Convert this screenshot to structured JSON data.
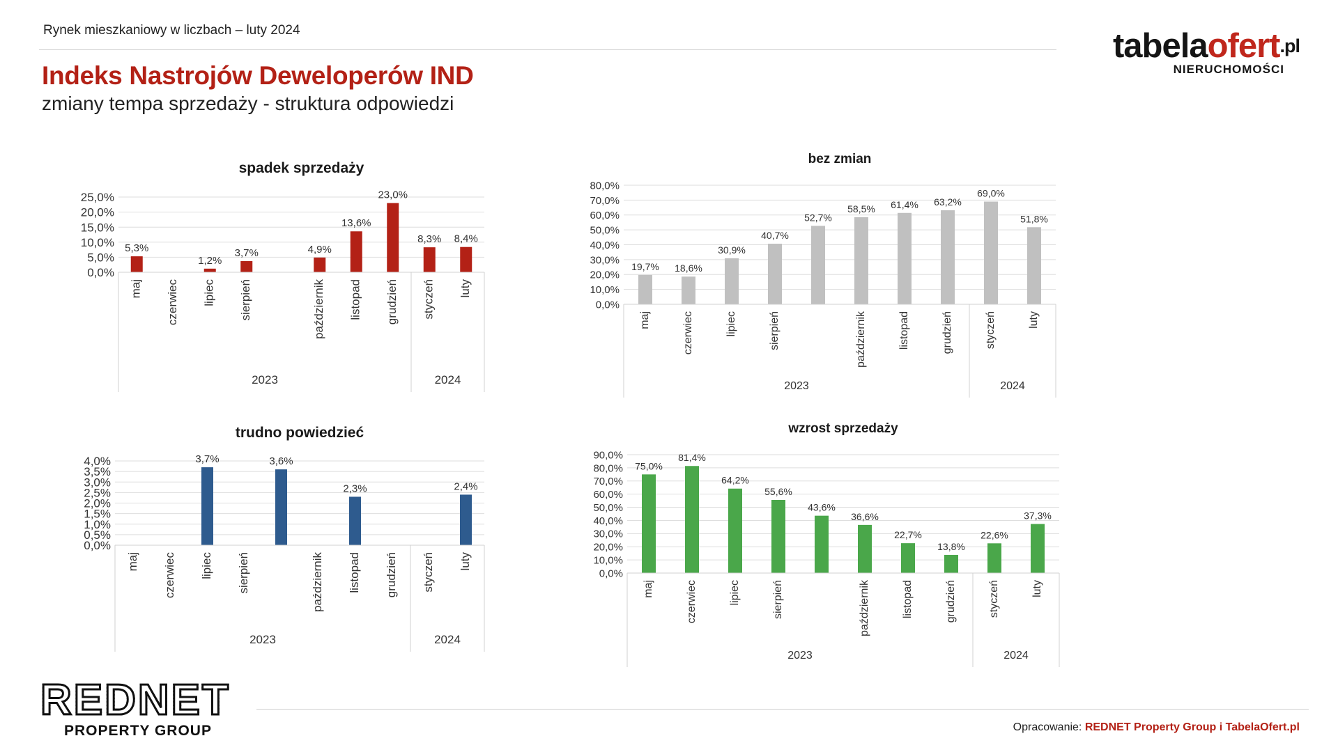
{
  "header": {
    "subheading": "Rynek mieszkaniowy w liczbach – luty 2024",
    "title": "Indeks Nastrojów Deweloperów IND",
    "subtitle": "zmiany tempa sprzedaży - struktura odpowiedzi"
  },
  "logo": {
    "main": "tabela",
    "accent": "ofert",
    "tld": ".pl",
    "sub": "NIERUCHOMOŚCI"
  },
  "footer": {
    "brand": "REDNET",
    "brand_sub": "PROPERTY GROUP",
    "credit_prefix": "Opracowanie: ",
    "credit_strong": "REDNET Property Group i TabelaOfert.pl"
  },
  "colors": {
    "accent": "#b32116",
    "red_bar": "#b32116",
    "gray_bar": "#c0c0c0",
    "blue_bar": "#2e5b8e",
    "green_bar": "#4aa74a"
  },
  "chart_data": [
    {
      "type": "bar",
      "title": "spadek sprzedaży",
      "categories": [
        "maj",
        "czerwiec",
        "lipiec",
        "sierpień",
        "",
        "październik",
        "listopad",
        "grudzień",
        "styczeń",
        "luty"
      ],
      "year_groups": [
        {
          "label": "2023",
          "count": 8
        },
        {
          "label": "2024",
          "count": 2
        }
      ],
      "values": [
        5.3,
        null,
        1.2,
        3.7,
        null,
        4.9,
        13.6,
        23.0,
        8.3,
        8.4
      ],
      "value_labels": [
        "5,3%",
        "",
        "1,2%",
        "3,7%",
        "",
        "4,9%",
        "13,6%",
        "23,0%",
        "8,3%",
        "8,4%"
      ],
      "ylim": [
        0,
        25
      ],
      "yticks": [
        "0,0%",
        "5,0%",
        "10,0%",
        "15,0%",
        "20,0%",
        "25,0%"
      ],
      "color": "#b32116"
    },
    {
      "type": "bar",
      "title": "bez zmian",
      "categories": [
        "maj",
        "czerwiec",
        "lipiec",
        "sierpień",
        "",
        "październik",
        "listopad",
        "grudzień",
        "styczeń",
        "luty"
      ],
      "year_groups": [
        {
          "label": "2023",
          "count": 8
        },
        {
          "label": "2024",
          "count": 2
        }
      ],
      "values": [
        19.7,
        18.6,
        30.9,
        40.7,
        52.7,
        58.5,
        61.4,
        63.2,
        69.0,
        51.8
      ],
      "value_labels": [
        "19,7%",
        "18,6%",
        "30,9%",
        "40,7%",
        "52,7%",
        "58,5%",
        "61,4%",
        "63,2%",
        "69,0%",
        "51,8%"
      ],
      "ylim": [
        0,
        80
      ],
      "yticks": [
        "0,0%",
        "10,0%",
        "20,0%",
        "30,0%",
        "40,0%",
        "50,0%",
        "60,0%",
        "70,0%",
        "80,0%"
      ],
      "color": "#c0c0c0"
    },
    {
      "type": "bar",
      "title": "trudno powiedzieć",
      "categories": [
        "maj",
        "czerwiec",
        "lipiec",
        "sierpień",
        "",
        "październik",
        "listopad",
        "grudzień",
        "styczeń",
        "luty"
      ],
      "year_groups": [
        {
          "label": "2023",
          "count": 8
        },
        {
          "label": "2024",
          "count": 2
        }
      ],
      "values": [
        null,
        null,
        3.7,
        null,
        3.6,
        null,
        2.3,
        null,
        null,
        2.4
      ],
      "value_labels": [
        "",
        "",
        "3,7%",
        "",
        "3,6%",
        "",
        "2,3%",
        "",
        "",
        "2,4%"
      ],
      "ylim": [
        0,
        4
      ],
      "yticks": [
        "0,0%",
        "0,5%",
        "1,0%",
        "1,5%",
        "2,0%",
        "2,5%",
        "3,0%",
        "3,5%",
        "4,0%"
      ],
      "color": "#2e5b8e"
    },
    {
      "type": "bar",
      "title": "wzrost sprzedaży",
      "categories": [
        "maj",
        "czerwiec",
        "lipiec",
        "sierpień",
        "",
        "październik",
        "listopad",
        "grudzień",
        "styczeń",
        "luty"
      ],
      "year_groups": [
        {
          "label": "2023",
          "count": 8
        },
        {
          "label": "2024",
          "count": 2
        }
      ],
      "values": [
        75.0,
        81.4,
        64.2,
        55.6,
        43.6,
        36.6,
        22.7,
        13.8,
        22.6,
        37.3
      ],
      "value_labels": [
        "75,0%",
        "81,4%",
        "64,2%",
        "55,6%",
        "43,6%",
        "36,6%",
        "22,7%",
        "13,8%",
        "22,6%",
        "37,3%"
      ],
      "ylim": [
        0,
        90
      ],
      "yticks": [
        "0,0%",
        "10,0%",
        "20,0%",
        "30,0%",
        "40,0%",
        "50,0%",
        "60,0%",
        "70,0%",
        "80,0%",
        "90,0%"
      ],
      "color": "#4aa74a"
    }
  ]
}
